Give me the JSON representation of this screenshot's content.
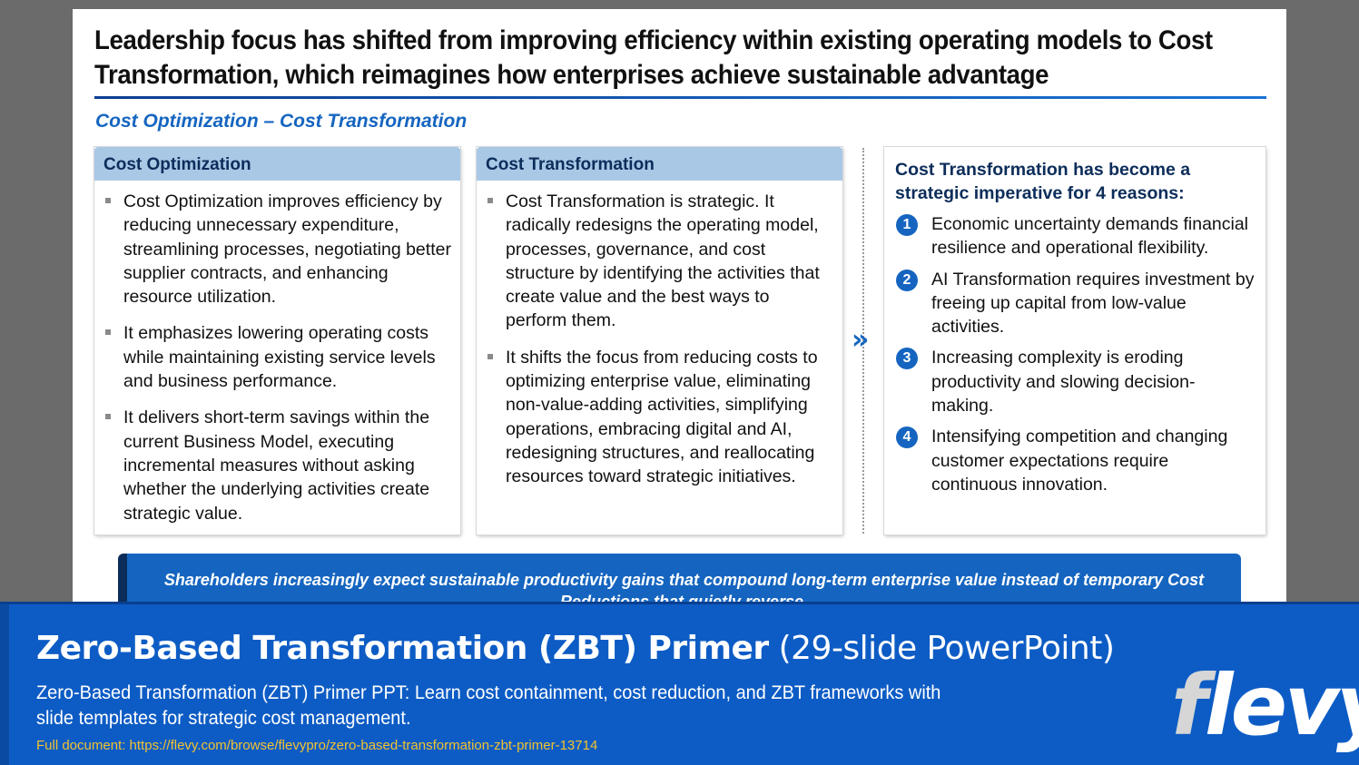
{
  "slide": {
    "title_line1": "Leadership focus has shifted from improving efficiency within existing operating models to Cost",
    "title_line2": "Transformation, which reimagines how enterprises achieve sustainable advantage",
    "subtitle": "Cost Optimization – Cost Transformation",
    "col1": {
      "heading": "Cost Optimization",
      "bullets": [
        "Cost Optimization improves efficiency by reducing unnecessary expenditure, streamlining processes, negotiating better supplier contracts, and enhancing resource utilization.",
        "It emphasizes lowering operating costs while maintaining existing service levels and business performance.",
        "It delivers short-term savings within the current Business Model, executing incremental measures without asking whether the underlying activities create strategic value."
      ]
    },
    "col2": {
      "heading": "Cost Transformation",
      "bullets": [
        "Cost Transformation is strategic. It radically redesigns the operating model, processes, governance, and cost structure by identifying the activities that create value and the best ways to perform them.",
        "It shifts the focus from reducing costs to optimizing enterprise value, eliminating non-value-adding activities, simplifying operations, embracing digital and AI, redesigning structures, and reallocating resources toward strategic initiatives."
      ]
    },
    "chevron": "»",
    "reasons": {
      "heading": "Cost Transformation has become a strategic imperative for 4 reasons:",
      "items": [
        {
          "num": "1",
          "text": "Economic uncertainty demands financial resilience and operational flexibility."
        },
        {
          "num": "2",
          "text": "AI Transformation requires investment by freeing up capital from low-value activities."
        },
        {
          "num": "3",
          "text": "Increasing complexity is eroding productivity and slowing decision-making."
        },
        {
          "num": "4",
          "text": "Intensifying competition and changing customer expectations require continuous innovation."
        }
      ]
    },
    "callout": "Shareholders increasingly expect sustainable productivity gains that compound long-term enterprise value instead of temporary Cost Reductions that quietly reverse."
  },
  "banner": {
    "title_bold": "Zero-Based Transformation (ZBT) Primer",
    "title_light": " (29-slide PowerPoint)",
    "description": "Zero-Based Transformation (ZBT) Primer PPT: Learn cost containment, cost reduction, and ZBT frameworks with slide templates for strategic cost management.",
    "link": "Full document: https://flevy.com/browse/flevypro/zero-based-transformation-zbt-primer-13714",
    "logo_f": "f",
    "logo_rest": "levy"
  },
  "colors": {
    "accent": "#1565c0",
    "header_fill": "#a9c8e6",
    "banner": "#0d5cc5",
    "link": "#f2c230"
  }
}
